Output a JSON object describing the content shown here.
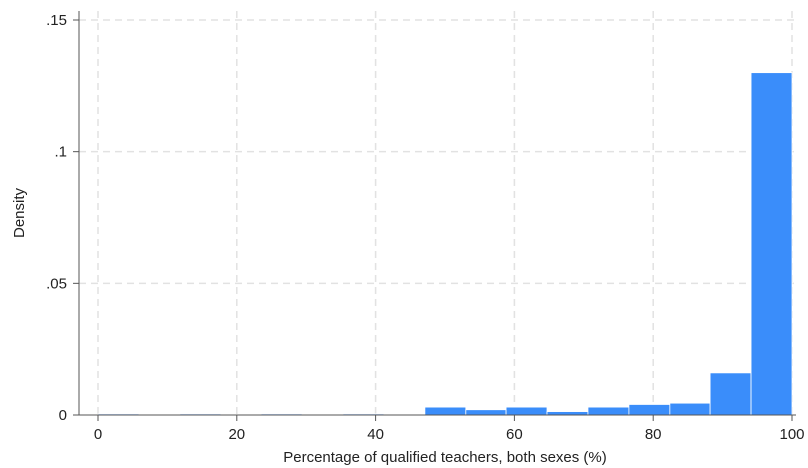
{
  "chart_data": {
    "type": "bar",
    "title": "",
    "xlabel": "Percentage of qualified teachers, both sexes (%)",
    "ylabel": "Density",
    "xlim": [
      0,
      100
    ],
    "ylim": [
      0,
      0.15
    ],
    "x_ticks": [
      0,
      20,
      40,
      60,
      80,
      100
    ],
    "x_tick_labels": [
      "0",
      "20",
      "40",
      "60",
      "80",
      "100"
    ],
    "y_ticks": [
      0,
      0.05,
      0.1,
      0.15
    ],
    "y_tick_labels": [
      "0",
      ".05",
      ".1",
      ".15"
    ],
    "grid": true,
    "legend": "none",
    "bar_color": "#3a8dfa",
    "bin_width": 5.9,
    "bins": [
      {
        "x0": 0.0,
        "x1": 5.9,
        "value": 0.0004
      },
      {
        "x0": 11.8,
        "x1": 17.7,
        "value": 0.0004
      },
      {
        "x0": 23.5,
        "x1": 29.4,
        "value": 0.0004
      },
      {
        "x0": 35.3,
        "x1": 41.2,
        "value": 0.0004
      },
      {
        "x0": 47.1,
        "x1": 53.0,
        "value": 0.003
      },
      {
        "x0": 53.0,
        "x1": 58.8,
        "value": 0.002
      },
      {
        "x0": 58.8,
        "x1": 64.7,
        "value": 0.003
      },
      {
        "x0": 64.7,
        "x1": 70.6,
        "value": 0.0013
      },
      {
        "x0": 70.6,
        "x1": 76.5,
        "value": 0.003
      },
      {
        "x0": 76.5,
        "x1": 82.4,
        "value": 0.004
      },
      {
        "x0": 82.4,
        "x1": 88.2,
        "value": 0.0045
      },
      {
        "x0": 88.2,
        "x1": 94.1,
        "value": 0.016
      },
      {
        "x0": 94.1,
        "x1": 100.0,
        "value": 0.13
      }
    ]
  }
}
